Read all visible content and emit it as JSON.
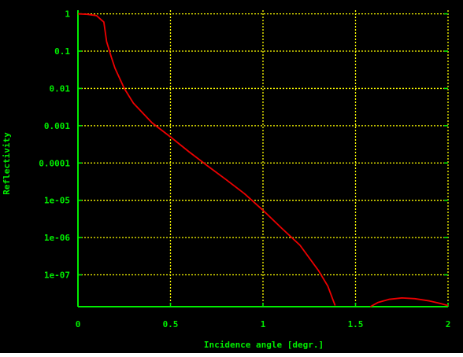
{
  "colors": {
    "background": "#000000",
    "axis": "#00ee00",
    "grid": "#ffff00",
    "curve": "#ee0000",
    "text": "#00ee00"
  },
  "chart_data": {
    "type": "line",
    "title": "",
    "xlabel": "Incidence angle [degr.]",
    "ylabel": "Reflectivity",
    "xlim": [
      0,
      2
    ],
    "ylim": [
      1.4e-08,
      1.25
    ],
    "yscale": "log",
    "grid": true,
    "legend": "none",
    "x_ticks": [
      0,
      0.5,
      1,
      1.5,
      2
    ],
    "x_tick_labels": [
      "0",
      "0.5",
      "1",
      "1.5",
      "2"
    ],
    "y_ticks": [
      1e-07,
      1e-06,
      1e-05,
      0.0001,
      0.001,
      0.01,
      0.1,
      1
    ],
    "y_tick_labels": [
      "1e-07",
      "1e-06",
      "1e-05",
      "0.0001",
      "0.001",
      "0.01",
      "0.1",
      "1"
    ],
    "series": [
      {
        "segments": [
          [
            [
              0,
              1.0
            ],
            [
              0.05,
              0.97
            ],
            [
              0.1,
              0.9
            ],
            [
              0.14,
              0.6
            ],
            [
              0.155,
              0.18
            ],
            [
              0.18,
              0.07
            ],
            [
              0.2,
              0.035
            ],
            [
              0.25,
              0.01
            ],
            [
              0.3,
              0.004
            ],
            [
              0.4,
              0.0012
            ],
            [
              0.5,
              0.0005
            ],
            [
              0.6,
              0.0002
            ],
            [
              0.7,
              8.4e-05
            ],
            [
              0.8,
              3.6e-05
            ],
            [
              0.9,
              1.5e-05
            ],
            [
              1.0,
              5.4e-06
            ],
            [
              1.1,
              1.8e-06
            ],
            [
              1.2,
              6.2e-07
            ],
            [
              1.3,
              1.3e-07
            ],
            [
              1.35,
              5e-08
            ],
            [
              1.39,
              1.5e-08
            ]
          ],
          [
            [
              1.58,
              1.4e-08
            ],
            [
              1.62,
              1.8e-08
            ],
            [
              1.68,
              2.2e-08
            ],
            [
              1.75,
              2.4e-08
            ],
            [
              1.82,
              2.3e-08
            ],
            [
              1.9,
              2e-08
            ],
            [
              1.96,
              1.7e-08
            ],
            [
              2.0,
              1.5e-08
            ]
          ]
        ]
      }
    ]
  }
}
